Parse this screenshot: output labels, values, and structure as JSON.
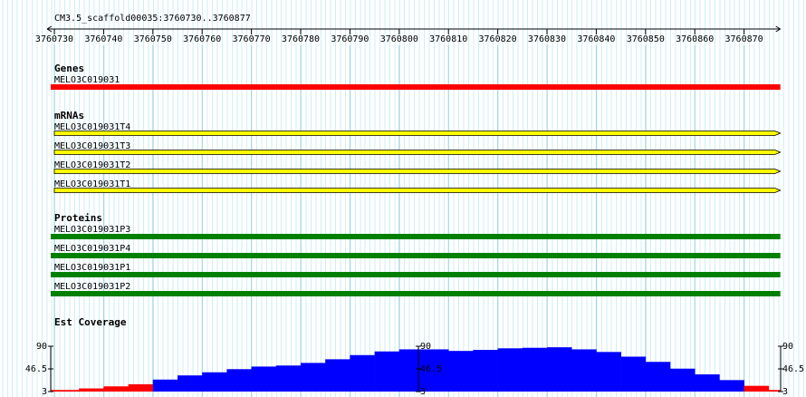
{
  "chart_data": {
    "type": "genome-browser",
    "title": "CM3.5_scaffold00035:3760730..3760877",
    "xlim": [
      3760730,
      3760877
    ],
    "xticks": [
      3760730,
      3760740,
      3760750,
      3760760,
      3760770,
      3760780,
      3760790,
      3760800,
      3760810,
      3760820,
      3760830,
      3760840,
      3760850,
      3760860,
      3760870
    ],
    "tracks": [
      {
        "label": "Genes",
        "features": [
          {
            "name": "MELO3C019031",
            "color": "#ff0000",
            "shape": "bar"
          }
        ]
      },
      {
        "label": "mRNAs",
        "features": [
          {
            "name": "MELO3C019031T4",
            "color": "#ffff00",
            "shape": "arrow"
          },
          {
            "name": "MELO3C019031T3",
            "color": "#ffff00",
            "shape": "arrow"
          },
          {
            "name": "MELO3C019031T2",
            "color": "#ffff00",
            "shape": "arrow"
          },
          {
            "name": "MELO3C019031T1",
            "color": "#ffff00",
            "shape": "arrow"
          }
        ]
      },
      {
        "label": "Proteins",
        "features": [
          {
            "name": "MELO3C019031P3",
            "color": "#008000",
            "shape": "bar"
          },
          {
            "name": "MELO3C019031P4",
            "color": "#008000",
            "shape": "bar"
          },
          {
            "name": "MELO3C019031P1",
            "color": "#008000",
            "shape": "bar"
          },
          {
            "name": "MELO3C019031P2",
            "color": "#008000",
            "shape": "bar"
          }
        ]
      }
    ],
    "coverage": {
      "label": "Est Coverage",
      "type": "bar",
      "ylim": [
        3,
        90
      ],
      "yticks": [
        3,
        46.5,
        90
      ],
      "bins": [
        3760730,
        3760735,
        3760740,
        3760745,
        3760750,
        3760755,
        3760760,
        3760765,
        3760770,
        3760775,
        3760780,
        3760785,
        3760790,
        3760795,
        3760800,
        3760805,
        3760810,
        3760815,
        3760820,
        3760825,
        3760830,
        3760835,
        3760840,
        3760845,
        3760850,
        3760855,
        3760860,
        3760865,
        3760870,
        3760875
      ],
      "values": [
        6,
        9,
        13,
        17,
        26,
        34,
        40,
        46,
        51,
        53,
        58,
        65,
        73,
        80,
        84,
        84,
        81,
        83,
        86,
        87,
        88,
        84,
        79,
        70,
        60,
        47,
        36,
        25,
        14,
        6
      ],
      "colors": [
        "#ff0000",
        "#ff0000",
        "#ff0000",
        "#ff0000",
        "#0000ff",
        "#0000ff",
        "#0000ff",
        "#0000ff",
        "#0000ff",
        "#0000ff",
        "#0000ff",
        "#0000ff",
        "#0000ff",
        "#0000ff",
        "#0000ff",
        "#0000ff",
        "#0000ff",
        "#0000ff",
        "#0000ff",
        "#0000ff",
        "#0000ff",
        "#0000ff",
        "#0000ff",
        "#0000ff",
        "#0000ff",
        "#0000ff",
        "#0000ff",
        "#0000ff",
        "#ff0000",
        "#ff0000"
      ]
    }
  }
}
